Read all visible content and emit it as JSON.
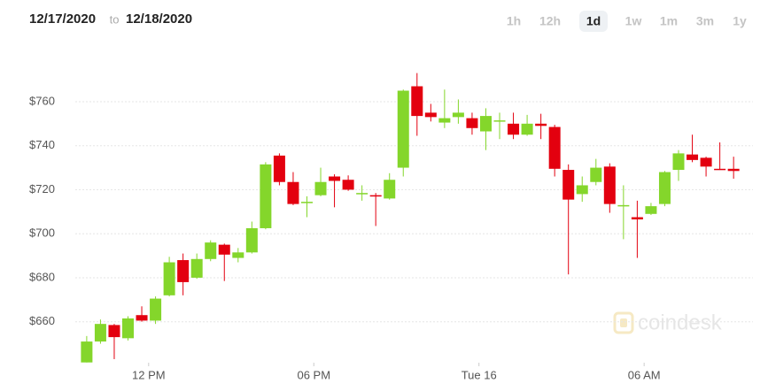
{
  "header": {
    "start_date": "12/17/2020",
    "separator": "to",
    "end_date": "12/18/2020",
    "ranges": [
      "1h",
      "12h",
      "1d",
      "1w",
      "1m",
      "3m",
      "1y"
    ],
    "selected_index": 2
  },
  "chart_data": {
    "type": "candlestick",
    "watermark": "coindesk",
    "up_color": "#84d62b",
    "down_color": "#e3000f",
    "grid": true,
    "x": [
      9.75,
      10.25,
      10.75,
      11.25,
      11.75,
      12.25,
      12.75,
      13.25,
      13.75,
      14.25,
      14.75,
      15.25,
      15.75,
      16.25,
      16.75,
      17.25,
      17.75,
      18.25,
      18.75,
      19.25,
      19.75,
      20.25,
      20.75,
      21.25,
      21.75,
      22.25,
      22.75,
      23.25,
      23.75,
      24.25,
      24.75,
      25.25,
      25.75,
      26.25,
      26.75,
      27.25,
      27.75,
      28.25,
      28.75,
      29.25,
      29.75,
      30.25,
      30.75,
      31.25,
      31.75,
      32.25,
      32.75,
      33.25
    ],
    "open": [
      641.5,
      651,
      658.5,
      652.5,
      663,
      660.5,
      672,
      688,
      680,
      688.5,
      695,
      689,
      691.5,
      702.5,
      735.5,
      723.5,
      714,
      717.5,
      726,
      724.5,
      718,
      717.5,
      716,
      730,
      767,
      755,
      750.5,
      753,
      752.5,
      746.5,
      751,
      750,
      745,
      750,
      748.5,
      729,
      718,
      723.5,
      730.5,
      712.5,
      707.5,
      709,
      713.5,
      729,
      736,
      734.5,
      729.5,
      729.5
    ],
    "high": [
      653.5,
      661,
      659,
      662.5,
      667,
      671.5,
      689.5,
      691,
      691,
      697,
      695.5,
      693.5,
      705.5,
      732.5,
      736.5,
      728,
      717,
      730,
      727,
      726.5,
      722,
      718.5,
      727.5,
      765.5,
      773,
      759,
      765.5,
      761,
      755,
      757,
      755,
      755,
      754,
      754.5,
      749.5,
      731.5,
      726,
      734,
      732,
      722,
      715,
      714,
      728.5,
      738,
      745,
      735,
      741.5,
      735
    ],
    "low": [
      641.5,
      650,
      643,
      651.5,
      660,
      659,
      671.5,
      672,
      679.5,
      687.5,
      678.5,
      687,
      691,
      702,
      722,
      713,
      707.5,
      717,
      712,
      719.5,
      715,
      703.5,
      715.5,
      726,
      744.5,
      751,
      748,
      750,
      745,
      738,
      743,
      743,
      744.5,
      743,
      726,
      681.5,
      714.5,
      722,
      709.5,
      697.5,
      689,
      708.5,
      712.5,
      724,
      732.5,
      726,
      729,
      725
    ],
    "close": [
      651,
      659,
      653,
      661.5,
      660.5,
      670.5,
      687,
      678,
      688.5,
      696,
      690.5,
      691.5,
      702.5,
      731.5,
      723.5,
      713.5,
      714.5,
      723.5,
      724,
      720,
      718.5,
      717,
      724.5,
      765,
      753.5,
      753,
      752.5,
      755,
      748,
      753.5,
      751.5,
      745,
      750,
      749,
      729.5,
      715.5,
      722,
      730,
      713.5,
      713,
      706.5,
      712.5,
      728,
      736.5,
      733.5,
      730.5,
      729,
      728.5
    ],
    "xlim": [
      6.6,
      34.5
    ],
    "xticks": [
      {
        "value": 12,
        "label": "12 PM"
      },
      {
        "value": 18,
        "label": "06 PM"
      },
      {
        "value": 24,
        "label": "Tue 16"
      },
      {
        "value": 30,
        "label": "06 AM"
      }
    ],
    "ylim": [
      645,
      805
    ],
    "yticks": [
      {
        "value": 660,
        "label": "$660"
      },
      {
        "value": 680,
        "label": "$680"
      },
      {
        "value": 700,
        "label": "$700"
      },
      {
        "value": 720,
        "label": "$720"
      },
      {
        "value": 740,
        "label": "$740"
      },
      {
        "value": 760,
        "label": "$760"
      }
    ]
  }
}
